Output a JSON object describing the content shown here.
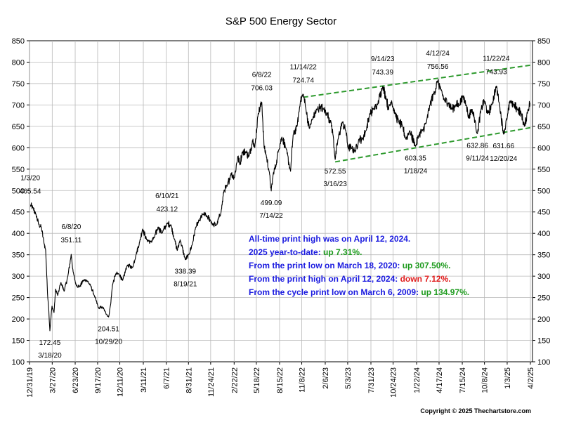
{
  "chart_data": {
    "type": "line",
    "title": "S&P 500 Energy Sector",
    "ylim": [
      100,
      850
    ],
    "y_ticks": [
      100,
      150,
      200,
      250,
      300,
      350,
      400,
      450,
      500,
      550,
      600,
      650,
      700,
      750,
      800,
      850
    ],
    "x_range": [
      "2019-12-31",
      "2025-04-10"
    ],
    "x_tick_labels": [
      "12/31/19",
      "3/27/20",
      "6/23/20",
      "9/17/20",
      "12/11/20",
      "3/11/21",
      "6/7/21",
      "8/31/21",
      "11/24/21",
      "2/22/22",
      "5/18/22",
      "8/15/22",
      "11/8/22",
      "2/6/23",
      "5/3/23",
      "7/31/23",
      "10/24/23",
      "1/22/24",
      "4/17/24",
      "7/15/24",
      "10/8/24",
      "1/3/25",
      "4/2/25"
    ],
    "x_tick_dates": [
      "2019-12-31",
      "2020-03-27",
      "2020-06-23",
      "2020-09-17",
      "2020-12-11",
      "2021-03-11",
      "2021-06-07",
      "2021-08-31",
      "2021-11-24",
      "2022-02-22",
      "2022-05-18",
      "2022-08-15",
      "2022-11-08",
      "2023-02-06",
      "2023-05-03",
      "2023-07-31",
      "2023-10-24",
      "2024-01-22",
      "2024-04-17",
      "2024-07-15",
      "2024-10-08",
      "2025-01-03",
      "2025-04-02"
    ],
    "grid": true,
    "series": [
      {
        "color": "#000000",
        "points": [
          [
            "2020-01-03",
            465.54
          ],
          [
            "2020-01-13",
            460
          ],
          [
            "2020-01-24",
            445
          ],
          [
            "2020-02-05",
            420
          ],
          [
            "2020-02-14",
            415
          ],
          [
            "2020-02-24",
            380
          ],
          [
            "2020-03-02",
            360
          ],
          [
            "2020-03-09",
            260
          ],
          [
            "2020-03-13",
            230
          ],
          [
            "2020-03-18",
            172.45
          ],
          [
            "2020-03-26",
            230
          ],
          [
            "2020-04-03",
            215
          ],
          [
            "2020-04-09",
            270
          ],
          [
            "2020-04-17",
            255
          ],
          [
            "2020-04-29",
            285
          ],
          [
            "2020-05-12",
            265
          ],
          [
            "2020-05-26",
            300
          ],
          [
            "2020-06-08",
            351.11
          ],
          [
            "2020-06-15",
            310
          ],
          [
            "2020-06-26",
            280
          ],
          [
            "2020-07-10",
            275
          ],
          [
            "2020-07-24",
            290
          ],
          [
            "2020-08-07",
            290
          ],
          [
            "2020-08-21",
            278
          ],
          [
            "2020-09-04",
            255
          ],
          [
            "2020-09-21",
            225
          ],
          [
            "2020-10-05",
            228
          ],
          [
            "2020-10-15",
            218
          ],
          [
            "2020-10-29",
            204.51
          ],
          [
            "2020-11-06",
            235
          ],
          [
            "2020-11-13",
            280
          ],
          [
            "2020-11-25",
            305
          ],
          [
            "2020-12-08",
            305
          ],
          [
            "2020-12-22",
            290
          ],
          [
            "2021-01-08",
            325
          ],
          [
            "2021-01-29",
            320
          ],
          [
            "2021-02-11",
            350
          ],
          [
            "2021-02-25",
            380
          ],
          [
            "2021-03-08",
            410
          ],
          [
            "2021-03-24",
            385
          ],
          [
            "2021-04-08",
            380
          ],
          [
            "2021-04-22",
            390
          ],
          [
            "2021-05-07",
            415
          ],
          [
            "2021-05-21",
            400
          ],
          [
            "2021-06-10",
            423.12
          ],
          [
            "2021-06-25",
            420
          ],
          [
            "2021-07-09",
            385
          ],
          [
            "2021-07-19",
            360
          ],
          [
            "2021-07-30",
            385
          ],
          [
            "2021-08-19",
            338.39
          ],
          [
            "2021-09-01",
            350
          ],
          [
            "2021-09-15",
            375
          ],
          [
            "2021-09-28",
            415
          ],
          [
            "2021-10-12",
            430
          ],
          [
            "2021-10-26",
            445
          ],
          [
            "2021-11-09",
            440
          ],
          [
            "2021-11-24",
            430
          ],
          [
            "2021-12-03",
            420
          ],
          [
            "2021-12-17",
            420
          ],
          [
            "2022-01-03",
            450
          ],
          [
            "2022-01-14",
            500
          ],
          [
            "2022-01-26",
            510
          ],
          [
            "2022-02-10",
            540
          ],
          [
            "2022-02-23",
            530
          ],
          [
            "2022-03-08",
            580
          ],
          [
            "2022-03-16",
            560
          ],
          [
            "2022-03-25",
            590
          ],
          [
            "2022-04-08",
            590
          ],
          [
            "2022-04-20",
            580
          ],
          [
            "2022-05-05",
            620
          ],
          [
            "2022-05-12",
            600
          ],
          [
            "2022-05-25",
            680
          ],
          [
            "2022-06-08",
            706.03
          ],
          [
            "2022-06-17",
            600
          ],
          [
            "2022-06-24",
            585
          ],
          [
            "2022-07-06",
            545
          ],
          [
            "2022-07-14",
            499.09
          ],
          [
            "2022-07-22",
            540
          ],
          [
            "2022-08-02",
            560
          ],
          [
            "2022-08-11",
            595
          ],
          [
            "2022-08-24",
            625
          ],
          [
            "2022-09-08",
            600
          ],
          [
            "2022-09-26",
            545
          ],
          [
            "2022-10-06",
            630
          ],
          [
            "2022-10-21",
            650
          ],
          [
            "2022-11-03",
            710
          ],
          [
            "2022-11-14",
            724.74
          ],
          [
            "2022-11-24",
            690
          ],
          [
            "2022-12-07",
            645
          ],
          [
            "2022-12-21",
            670
          ],
          [
            "2023-01-06",
            690
          ],
          [
            "2023-01-18",
            695
          ],
          [
            "2023-01-30",
            690
          ],
          [
            "2023-02-13",
            680
          ],
          [
            "2023-02-28",
            660
          ],
          [
            "2023-03-08",
            630
          ],
          [
            "2023-03-16",
            572.55
          ],
          [
            "2023-03-27",
            620
          ],
          [
            "2023-04-12",
            660
          ],
          [
            "2023-04-26",
            640
          ],
          [
            "2023-05-04",
            600
          ],
          [
            "2023-05-19",
            600
          ],
          [
            "2023-05-31",
            590
          ],
          [
            "2023-06-15",
            620
          ],
          [
            "2023-06-28",
            620
          ],
          [
            "2023-07-12",
            640
          ],
          [
            "2023-07-27",
            680
          ],
          [
            "2023-08-10",
            690
          ],
          [
            "2023-08-25",
            700
          ],
          [
            "2023-09-14",
            743.39
          ],
          [
            "2023-09-28",
            715
          ],
          [
            "2023-10-06",
            690
          ],
          [
            "2023-10-18",
            710
          ],
          [
            "2023-10-31",
            680
          ],
          [
            "2023-11-15",
            660
          ],
          [
            "2023-11-29",
            650
          ],
          [
            "2023-12-12",
            620
          ],
          [
            "2023-12-26",
            640
          ],
          [
            "2024-01-18",
            603.35
          ],
          [
            "2024-01-31",
            630
          ],
          [
            "2024-02-14",
            640
          ],
          [
            "2024-02-29",
            660
          ],
          [
            "2024-03-13",
            700
          ],
          [
            "2024-03-27",
            725
          ],
          [
            "2024-04-12",
            756.56
          ],
          [
            "2024-04-24",
            735
          ],
          [
            "2024-05-08",
            710
          ],
          [
            "2024-05-22",
            705
          ],
          [
            "2024-06-05",
            690
          ],
          [
            "2024-06-20",
            700
          ],
          [
            "2024-07-03",
            700
          ],
          [
            "2024-07-17",
            720
          ],
          [
            "2024-07-31",
            700
          ],
          [
            "2024-08-07",
            670
          ],
          [
            "2024-08-21",
            690
          ],
          [
            "2024-09-03",
            660
          ],
          [
            "2024-09-11",
            632.86
          ],
          [
            "2024-09-25",
            690
          ],
          [
            "2024-10-07",
            710
          ],
          [
            "2024-10-21",
            680
          ],
          [
            "2024-11-05",
            700
          ],
          [
            "2024-11-22",
            743.93
          ],
          [
            "2024-12-04",
            705
          ],
          [
            "2024-12-20",
            631.66
          ],
          [
            "2025-01-03",
            670
          ],
          [
            "2025-01-15",
            710
          ],
          [
            "2025-01-27",
            700
          ],
          [
            "2025-02-12",
            690
          ],
          [
            "2025-02-26",
            680
          ],
          [
            "2025-03-10",
            650
          ],
          [
            "2025-03-24",
            690
          ],
          [
            "2025-04-01",
            705
          ]
        ]
      }
    ],
    "trendlines": [
      {
        "style": "dashed",
        "color": "#2e9a2e",
        "points": [
          [
            "2022-11-14",
            718
          ],
          [
            "2025-04-03",
            793
          ]
        ]
      },
      {
        "style": "dashed",
        "color": "#2e9a2e",
        "points": [
          [
            "2023-03-16",
            567
          ],
          [
            "2025-04-03",
            647
          ]
        ]
      }
    ],
    "annotations": [
      {
        "date": "2020-01-03",
        "value": 465.54,
        "label_date": "1/3/20",
        "label_value": "465.54",
        "position": "above"
      },
      {
        "date": "2020-03-18",
        "value": 172.45,
        "label_date": "3/18/20",
        "label_value": "172.45",
        "position": "below"
      },
      {
        "date": "2020-06-08",
        "value": 351.11,
        "label_date": "6/8/20",
        "label_value": "351.11",
        "position": "above"
      },
      {
        "date": "2020-10-29",
        "value": 204.51,
        "label_date": "10/29/20",
        "label_value": "204.51",
        "position": "below"
      },
      {
        "date": "2021-06-10",
        "value": 423.12,
        "label_date": "6/10/21",
        "label_value": "423.12",
        "position": "above"
      },
      {
        "date": "2021-08-19",
        "value": 338.39,
        "label_date": "8/19/21",
        "label_value": "338.39",
        "position": "below"
      },
      {
        "date": "2022-06-08",
        "value": 706.03,
        "label_date": "6/8/22",
        "label_value": "706.03",
        "position": "above"
      },
      {
        "date": "2022-07-14",
        "value": 499.09,
        "label_date": "7/14/22",
        "label_value": "499.09",
        "position": "below"
      },
      {
        "date": "2022-11-14",
        "value": 724.74,
        "label_date": "11/14/22",
        "label_value": "724.74",
        "position": "above"
      },
      {
        "date": "2023-03-16",
        "value": 572.55,
        "label_date": "3/16/23",
        "label_value": "572.55",
        "position": "below"
      },
      {
        "date": "2023-09-14",
        "value": 743.39,
        "label_date": "9/14/23",
        "label_value": "743.39",
        "position": "above"
      },
      {
        "date": "2024-01-18",
        "value": 603.35,
        "label_date": "1/18/24",
        "label_value": "603.35",
        "position": "below"
      },
      {
        "date": "2024-04-12",
        "value": 756.56,
        "label_date": "4/12/24",
        "label_value": "756.56",
        "position": "above"
      },
      {
        "date": "2024-09-11",
        "value": 632.86,
        "label_date": "9/11/24",
        "label_value": "632.86",
        "position": "below"
      },
      {
        "date": "2024-11-22",
        "value": 743.93,
        "label_date": "11/22/24",
        "label_value": "743.93",
        "position": "above"
      },
      {
        "date": "2024-12-20",
        "value": 631.66,
        "label_date": "12/20/24",
        "label_value": "631.66",
        "position": "below"
      }
    ],
    "info_lines": [
      [
        {
          "text": "All-time print high was on April 12, 2024.",
          "color": "#1a1adf"
        }
      ],
      [
        {
          "text": "2025 year-to-date:  ",
          "color": "#1a1adf"
        },
        {
          "text": "up 7.31%.",
          "color": "#1c9a1c"
        }
      ],
      [
        {
          "text": "From the print low on March 18, 2020:  ",
          "color": "#1a1adf"
        },
        {
          "text": "up 307.50%.",
          "color": "#1c9a1c"
        }
      ],
      [
        {
          "text": "From the print high on April 12, 2024:  ",
          "color": "#1a1adf"
        },
        {
          "text": "down 7.12%.",
          "color": "#e01c1c"
        }
      ],
      [
        {
          "text": "From the cycle print low on March 6, 2009:  ",
          "color": "#1a1adf"
        },
        {
          "text": "up 134.97%.",
          "color": "#1c9a1c"
        }
      ]
    ],
    "copyright": "Copyright © 2025 Thechartstore.com"
  }
}
